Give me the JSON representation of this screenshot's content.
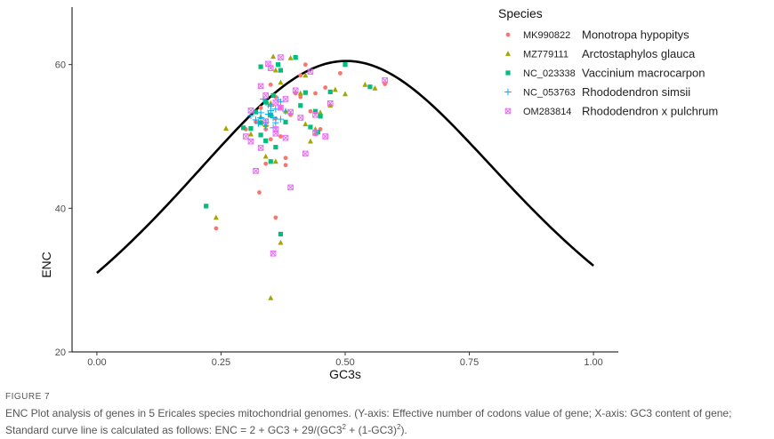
{
  "figure_label": "FIGURE 7",
  "caption": {
    "part1": "ENC Plot analysis of genes in 5 Ericales species mitochondrial genomes. (Y-axis: Effective number of codons value of gene; X-axis: GC3 content of gene; Standard curve line is calculated as follows: ENC = 2 + GC3 + 29/(GC3",
    "sup1": "2",
    "part2": " + (1-GC3)",
    "sup2": "2",
    "part3": ")."
  },
  "chart_data": {
    "type": "scatter",
    "xlabel": "GC3s",
    "ylabel": "ENC",
    "xlim": [
      -0.05,
      1.05
    ],
    "ylim": [
      20,
      68
    ],
    "xticks": [
      "0.00",
      "0.25",
      "0.50",
      "0.75",
      "1.00"
    ],
    "xtick_values": [
      0,
      0.25,
      0.5,
      0.75,
      1.0
    ],
    "yticks": [
      "20",
      "40",
      "60"
    ],
    "ytick_values": [
      20,
      40,
      60
    ],
    "grid": false,
    "legend": {
      "title": "Species",
      "position": "top-right"
    },
    "curve": {
      "formula": "ENC = 2 + GC3 + 29/(GC3^2 + (1-GC3)^2)",
      "color": "#000000"
    },
    "series": [
      {
        "name": "MK990822",
        "species": "Monotropa hypopitys",
        "color": "#F8766D",
        "marker": "circle",
        "points": [
          [
            0.24,
            37.2
          ],
          [
            0.327,
            42.2
          ],
          [
            0.36,
            38.7
          ],
          [
            0.35,
            57.2
          ],
          [
            0.33,
            54
          ],
          [
            0.34,
            51
          ],
          [
            0.36,
            55.5
          ],
          [
            0.37,
            50
          ],
          [
            0.38,
            47
          ],
          [
            0.32,
            52
          ],
          [
            0.41,
            58.5
          ],
          [
            0.42,
            60
          ],
          [
            0.44,
            56
          ],
          [
            0.45,
            51
          ],
          [
            0.43,
            53.5
          ],
          [
            0.38,
            46
          ],
          [
            0.35,
            49.6
          ],
          [
            0.36,
            52.5
          ],
          [
            0.46,
            56.8
          ],
          [
            0.49,
            58.8
          ],
          [
            0.58,
            57.3
          ],
          [
            0.4,
            56
          ],
          [
            0.3,
            51
          ],
          [
            0.37,
            54
          ],
          [
            0.44,
            50.3
          ],
          [
            0.34,
            46.2
          ],
          [
            0.39,
            53
          ],
          [
            0.41,
            55.5
          ]
        ]
      },
      {
        "name": "MZ779111",
        "species": "Arctostaphylos glauca",
        "color": "#A3A500",
        "marker": "triangle",
        "points": [
          [
            0.24,
            38.7
          ],
          [
            0.26,
            51.1
          ],
          [
            0.34,
            47.2
          ],
          [
            0.36,
            46.5
          ],
          [
            0.37,
            35.2
          ],
          [
            0.35,
            27.5
          ],
          [
            0.355,
            61.1
          ],
          [
            0.4,
            61
          ],
          [
            0.41,
            56
          ],
          [
            0.42,
            58.5
          ],
          [
            0.43,
            49.3
          ],
          [
            0.44,
            51
          ],
          [
            0.47,
            54.3
          ],
          [
            0.5,
            55.9
          ],
          [
            0.54,
            57.2
          ],
          [
            0.56,
            56.7
          ],
          [
            0.33,
            52.7
          ],
          [
            0.38,
            53.5
          ],
          [
            0.36,
            59.2
          ],
          [
            0.31,
            50.3
          ],
          [
            0.45,
            53.3
          ],
          [
            0.39,
            60.9
          ],
          [
            0.35,
            54.6
          ],
          [
            0.42,
            51.7
          ],
          [
            0.48,
            56.5
          ],
          [
            0.37,
            57.5
          ],
          [
            0.34,
            51.6
          ]
        ]
      },
      {
        "name": "NC_023338",
        "species": "Vaccinium macrocarpon",
        "color": "#00BF7D",
        "marker": "square",
        "points": [
          [
            0.22,
            40.3
          ],
          [
            0.295,
            51.2
          ],
          [
            0.31,
            51.1
          ],
          [
            0.33,
            50.2
          ],
          [
            0.34,
            49.4
          ],
          [
            0.35,
            46.5
          ],
          [
            0.36,
            48.5
          ],
          [
            0.37,
            36.4
          ],
          [
            0.33,
            59.7
          ],
          [
            0.35,
            53
          ],
          [
            0.365,
            60
          ],
          [
            0.4,
            61
          ],
          [
            0.41,
            54.3
          ],
          [
            0.44,
            53.5
          ],
          [
            0.43,
            51.3
          ],
          [
            0.445,
            50.6
          ],
          [
            0.47,
            56.2
          ],
          [
            0.5,
            60
          ],
          [
            0.34,
            54.8
          ],
          [
            0.38,
            52
          ],
          [
            0.355,
            55.7
          ],
          [
            0.32,
            53.4
          ],
          [
            0.42,
            56.1
          ],
          [
            0.37,
            59.2
          ],
          [
            0.45,
            52.8
          ],
          [
            0.33,
            51.9
          ],
          [
            0.55,
            56.9
          ]
        ]
      },
      {
        "name": "NC_053763",
        "species": "Rhododendron simsii",
        "color": "#00B0F6",
        "marker": "plus",
        "points": [
          [
            0.31,
            52.9
          ],
          [
            0.32,
            52.3
          ],
          [
            0.33,
            53.3
          ],
          [
            0.34,
            52
          ],
          [
            0.35,
            53.6
          ],
          [
            0.355,
            52.6
          ],
          [
            0.36,
            51.9
          ],
          [
            0.345,
            53.1
          ],
          [
            0.37,
            52.4
          ],
          [
            0.325,
            51.8
          ],
          [
            0.35,
            54.2
          ],
          [
            0.34,
            51.5
          ],
          [
            0.36,
            53.8
          ],
          [
            0.33,
            52.6
          ],
          [
            0.37,
            54.8
          ],
          [
            0.38,
            53.5
          ],
          [
            0.355,
            51.2
          ],
          [
            0.365,
            55.1
          ],
          [
            0.345,
            54.4
          ],
          [
            0.335,
            55.2
          ]
        ]
      },
      {
        "name": "OM283814",
        "species": "Rhododendron x pulchrum",
        "color": "#E76BF3",
        "marker": "square-x",
        "points": [
          [
            0.3,
            50
          ],
          [
            0.31,
            49.3
          ],
          [
            0.32,
            45.2
          ],
          [
            0.33,
            57
          ],
          [
            0.34,
            55.7
          ],
          [
            0.345,
            60.1
          ],
          [
            0.36,
            51
          ],
          [
            0.37,
            61
          ],
          [
            0.38,
            55.2
          ],
          [
            0.39,
            53.4
          ],
          [
            0.39,
            42.9
          ],
          [
            0.355,
            33.7
          ],
          [
            0.4,
            56.4
          ],
          [
            0.42,
            47.6
          ],
          [
            0.43,
            59
          ],
          [
            0.44,
            53
          ],
          [
            0.46,
            50
          ],
          [
            0.47,
            54.6
          ],
          [
            0.58,
            57.8
          ],
          [
            0.35,
            59.5
          ],
          [
            0.36,
            54.7
          ],
          [
            0.37,
            54
          ],
          [
            0.38,
            49.8
          ],
          [
            0.33,
            48.4
          ],
          [
            0.36,
            50.4
          ],
          [
            0.41,
            52.6
          ],
          [
            0.44,
            50.5
          ],
          [
            0.34,
            52.1
          ],
          [
            0.31,
            53.6
          ]
        ]
      }
    ]
  }
}
